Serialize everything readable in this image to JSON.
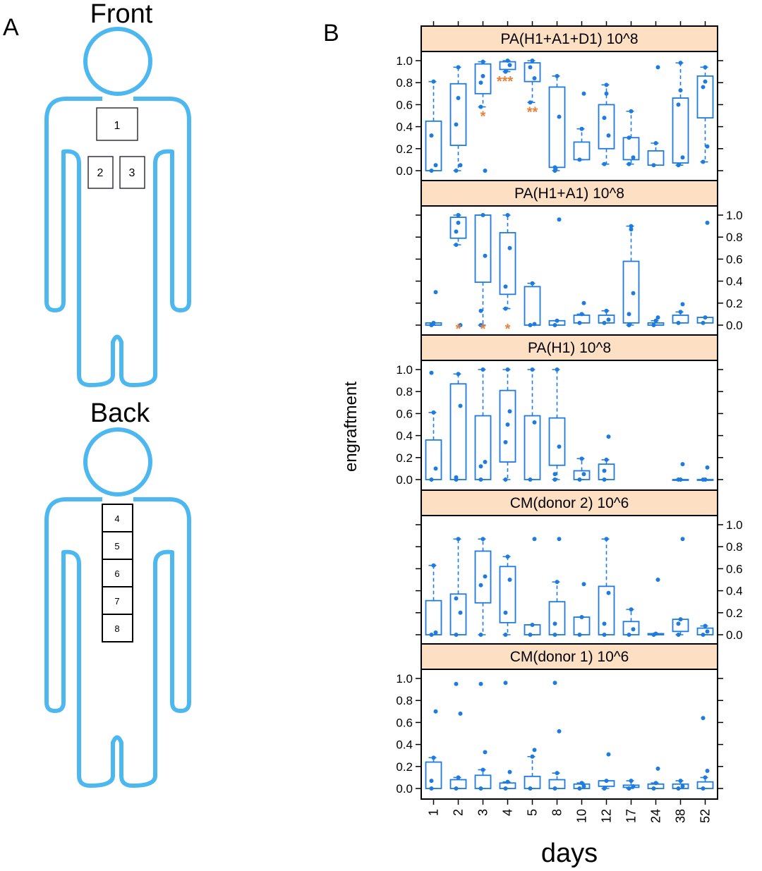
{
  "panel_a": {
    "label": "A",
    "front_title": "Front",
    "back_title": "Back",
    "front_sites": [
      "1",
      "2",
      "3"
    ],
    "back_sites": [
      "4",
      "5",
      "6",
      "7",
      "8"
    ],
    "outline_color": "#4db8f0"
  },
  "panel_b": {
    "label": "B"
  },
  "colors": {
    "box": "#1e7be0",
    "significance": "#e8823a",
    "strip": "#fde0c4"
  },
  "chart_data": {
    "type": "box",
    "xlabel": "days",
    "ylabel": "engraftment",
    "categories": [
      "1",
      "2",
      "3",
      "4",
      "5",
      "8",
      "10",
      "12",
      "17",
      "24",
      "38",
      "52"
    ],
    "ylim": [
      0,
      1.0
    ],
    "yticks": [
      "0.0",
      "0.2",
      "0.4",
      "0.6",
      "0.8",
      "1.0"
    ],
    "panels": [
      {
        "title": "PA(H1+A1+D1) 10^8",
        "boxes": [
          {
            "lo": 0,
            "q1": 0,
            "q3": 0.45,
            "hi": 0.81,
            "points": [
              0.05,
              0.32
            ]
          },
          {
            "lo": 0,
            "q1": 0.23,
            "q3": 0.79,
            "hi": 0.94,
            "points": [
              0.05,
              0.42,
              0.66
            ]
          },
          {
            "lo": 0.58,
            "q1": 0.7,
            "q3": 0.97,
            "hi": 0.99,
            "points": [
              0.0,
              0.8,
              0.86
            ],
            "sig": "*"
          },
          {
            "lo": 0.9,
            "q1": 0.92,
            "q3": 0.99,
            "hi": 1.0,
            "points": [
              0.96
            ],
            "sig": "***"
          },
          {
            "lo": 0.62,
            "q1": 0.81,
            "q3": 0.98,
            "hi": 1.0,
            "points": [
              0.84,
              0.94
            ],
            "sig": "**"
          },
          {
            "lo": 0,
            "q1": 0.03,
            "q3": 0.76,
            "hi": 0.86,
            "points": [
              0.49,
              0.03
            ]
          },
          {
            "lo": 0.1,
            "q1": 0.1,
            "q3": 0.26,
            "hi": 0.38,
            "points": [
              0.7
            ]
          },
          {
            "lo": 0.06,
            "q1": 0.2,
            "q3": 0.6,
            "hi": 0.78,
            "points": [
              0.32,
              0.48,
              0.7
            ]
          },
          {
            "lo": 0.06,
            "q1": 0.1,
            "q3": 0.3,
            "hi": 0.54,
            "points": [
              0.12,
              0.3
            ]
          },
          {
            "lo": 0.05,
            "q1": 0.05,
            "q3": 0.18,
            "hi": 0.25,
            "points": [
              0.94
            ]
          },
          {
            "lo": 0.05,
            "q1": 0.07,
            "q3": 0.66,
            "hi": 0.98,
            "points": [
              0.12,
              0.6,
              0.73
            ]
          },
          {
            "lo": 0.08,
            "q1": 0.48,
            "q3": 0.86,
            "hi": 0.94,
            "points": [
              0.22,
              0.76,
              0.81
            ]
          }
        ]
      },
      {
        "title": "PA(H1+A1) 10^8",
        "boxes": [
          {
            "lo": 0,
            "q1": 0,
            "q3": 0.02,
            "hi": 0.02,
            "points": [
              0.3
            ]
          },
          {
            "lo": 0.73,
            "q1": 0.79,
            "q3": 0.98,
            "hi": 1.0,
            "points": [
              0.0,
              0.85,
              0.93
            ],
            "sig": "*"
          },
          {
            "lo": 0,
            "q1": 0.39,
            "q3": 1.0,
            "hi": 1.0,
            "points": [
              0.63,
              0.13
            ],
            "sig": "*"
          },
          {
            "lo": 0.15,
            "q1": 0.28,
            "q3": 0.84,
            "hi": 1.0,
            "points": [
              0.7,
              0.35
            ],
            "sig": "*"
          },
          {
            "lo": 0,
            "q1": 0,
            "q3": 0.35,
            "hi": 0.38,
            "points": [
              0.01
            ]
          },
          {
            "lo": 0,
            "q1": 0,
            "q3": 0.04,
            "hi": 0.04,
            "points": [
              0.96
            ]
          },
          {
            "lo": 0.02,
            "q1": 0.02,
            "q3": 0.09,
            "hi": 0.1,
            "points": [
              0.2
            ]
          },
          {
            "lo": 0.02,
            "q1": 0.02,
            "q3": 0.09,
            "hi": 0.13,
            "points": [
              0.05
            ]
          },
          {
            "lo": 0,
            "q1": 0.02,
            "q3": 0.58,
            "hi": 0.9,
            "points": [
              0.29,
              0.1,
              0.87
            ]
          },
          {
            "lo": 0,
            "q1": 0,
            "q3": 0.02,
            "hi": 0.04,
            "points": [
              0.07
            ]
          },
          {
            "lo": 0.02,
            "q1": 0.02,
            "q3": 0.09,
            "hi": 0.12,
            "points": [
              0.19
            ]
          },
          {
            "lo": 0.02,
            "q1": 0.02,
            "q3": 0.07,
            "hi": 0.07,
            "points": [
              0.93
            ]
          }
        ]
      },
      {
        "title": "PA(H1) 10^8",
        "boxes": [
          {
            "lo": 0,
            "q1": 0,
            "q3": 0.36,
            "hi": 0.61,
            "points": [
              0.1,
              0.97
            ]
          },
          {
            "lo": 0,
            "q1": 0,
            "q3": 0.87,
            "hi": 0.96,
            "points": [
              0.67,
              0.02
            ]
          },
          {
            "lo": 0,
            "q1": 0,
            "q3": 0.58,
            "hi": 1.0,
            "points": [
              0.16,
              0.12
            ]
          },
          {
            "lo": 0,
            "q1": 0.16,
            "q3": 0.81,
            "hi": 1.0,
            "points": [
              0.62,
              0.34,
              0.5
            ]
          },
          {
            "lo": 0,
            "q1": 0,
            "q3": 0.58,
            "hi": 1.0,
            "points": [
              0.52
            ]
          },
          {
            "lo": 0,
            "q1": 0.13,
            "q3": 0.56,
            "hi": 1.0,
            "points": [
              0.3,
              0.05
            ]
          },
          {
            "lo": 0,
            "q1": 0,
            "q3": 0.08,
            "hi": 0.19,
            "points": [
              0.05
            ]
          },
          {
            "lo": 0,
            "q1": 0,
            "q3": 0.14,
            "hi": 0.18,
            "points": [
              0.39,
              0.08
            ]
          },
          null,
          null,
          {
            "lo": 0,
            "q1": 0,
            "q3": 0,
            "hi": 0,
            "points": [
              0.14
            ]
          },
          {
            "lo": 0,
            "q1": 0,
            "q3": 0,
            "hi": 0,
            "points": [
              0.11
            ]
          }
        ]
      },
      {
        "title": "CM(donor 2) 10^6",
        "boxes": [
          {
            "lo": 0,
            "q1": 0,
            "q3": 0.31,
            "hi": 0.63,
            "points": [
              0.02
            ]
          },
          {
            "lo": 0,
            "q1": 0,
            "q3": 0.37,
            "hi": 0.87,
            "points": [
              0.2,
              0.33
            ]
          },
          {
            "lo": 0,
            "q1": 0.29,
            "q3": 0.76,
            "hi": 0.87,
            "points": [
              0.53,
              0.45
            ]
          },
          {
            "lo": 0,
            "q1": 0.11,
            "q3": 0.62,
            "hi": 0.71,
            "points": [
              0.5,
              0.2
            ]
          },
          {
            "lo": 0,
            "q1": 0,
            "q3": 0.09,
            "hi": 0.09,
            "points": [
              0.87
            ]
          },
          {
            "lo": 0,
            "q1": 0,
            "q3": 0.3,
            "hi": 0.48,
            "points": [
              0.87,
              0.1
            ]
          },
          {
            "lo": 0,
            "q1": 0,
            "q3": 0.16,
            "hi": 0.16,
            "points": [
              0.46
            ]
          },
          {
            "lo": 0,
            "q1": 0,
            "q3": 0.44,
            "hi": 0.87,
            "points": [
              0.38,
              0.1
            ]
          },
          {
            "lo": 0,
            "q1": 0,
            "q3": 0.12,
            "hi": 0.23,
            "points": [
              0.05
            ]
          },
          {
            "lo": 0,
            "q1": 0,
            "q3": 0.01,
            "hi": 0.01,
            "points": [
              0.5
            ]
          },
          {
            "lo": 0,
            "q1": 0.03,
            "q3": 0.14,
            "hi": 0.14,
            "points": [
              0.87,
              0.1
            ]
          },
          {
            "lo": 0,
            "q1": 0,
            "q3": 0.06,
            "hi": 0.08,
            "points": [
              0.03
            ]
          }
        ]
      },
      {
        "title": "CM(donor 1) 10^6",
        "boxes": [
          {
            "lo": 0,
            "q1": 0,
            "q3": 0.24,
            "hi": 0.28,
            "points": [
              0.7,
              0.07
            ]
          },
          {
            "lo": 0,
            "q1": 0,
            "q3": 0.08,
            "hi": 0.1,
            "points": [
              0.68,
              0.95
            ]
          },
          {
            "lo": 0,
            "q1": 0,
            "q3": 0.12,
            "hi": 0.17,
            "points": [
              0.33,
              0.95
            ]
          },
          {
            "lo": 0,
            "q1": 0,
            "q3": 0.05,
            "hi": 0.06,
            "points": [
              0.15,
              0.96
            ]
          },
          {
            "lo": 0,
            "q1": 0,
            "q3": 0.11,
            "hi": 0.29,
            "points": [
              0.35
            ]
          },
          {
            "lo": 0,
            "q1": 0,
            "q3": 0.08,
            "hi": 0.14,
            "points": [
              0.52,
              0.96
            ]
          },
          {
            "lo": 0,
            "q1": 0,
            "q3": 0.04,
            "hi": 0.05,
            "points": [
              0.02
            ]
          },
          {
            "lo": 0,
            "q1": 0.02,
            "q3": 0.07,
            "hi": 0.07,
            "points": [
              0.31
            ]
          },
          {
            "lo": 0,
            "q1": 0.01,
            "q3": 0.03,
            "hi": 0.07,
            "points": [
              0.02
            ]
          },
          {
            "lo": 0,
            "q1": 0,
            "q3": 0.04,
            "hi": 0.05,
            "points": [
              0.18
            ]
          },
          {
            "lo": 0,
            "q1": 0,
            "q3": 0.04,
            "hi": 0.07,
            "points": [
              0.02
            ]
          },
          {
            "lo": 0,
            "q1": 0,
            "q3": 0.06,
            "hi": 0.1,
            "points": [
              0.16,
              0.64
            ]
          }
        ]
      }
    ]
  }
}
